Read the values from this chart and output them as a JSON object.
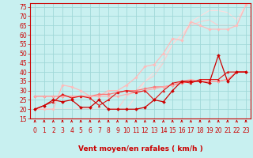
{
  "xlabel": "Vent moyen/en rafales ( km/h )",
  "xlim": [
    -0.5,
    23.5
  ],
  "ylim": [
    15,
    77
  ],
  "yticks": [
    15,
    20,
    25,
    30,
    35,
    40,
    45,
    50,
    55,
    60,
    65,
    70,
    75
  ],
  "xticks": [
    0,
    1,
    2,
    3,
    4,
    5,
    6,
    7,
    8,
    9,
    10,
    11,
    12,
    13,
    14,
    15,
    16,
    17,
    18,
    19,
    20,
    21,
    22,
    23
  ],
  "bg_color": "#c8f0f0",
  "grid_color": "#a0d8d8",
  "lines": [
    {
      "x": [
        0,
        1,
        2,
        3,
        4,
        5,
        6,
        7,
        8,
        9,
        10,
        11,
        12,
        13,
        14,
        15,
        16,
        17,
        18,
        19,
        20,
        21,
        22,
        23
      ],
      "y": [
        20,
        22,
        25,
        24,
        25,
        21,
        21,
        25,
        20,
        20,
        20,
        20,
        21,
        25,
        24,
        30,
        35,
        35,
        35,
        34,
        49,
        35,
        40,
        40
      ],
      "color": "#cc0000",
      "lw": 0.9,
      "marker": "D",
      "ms": 2.0,
      "zorder": 5
    },
    {
      "x": [
        0,
        1,
        2,
        3,
        4,
        5,
        6,
        7,
        8,
        9,
        10,
        11,
        12,
        13,
        14,
        15,
        16,
        17,
        18,
        19,
        20,
        21,
        22,
        23
      ],
      "y": [
        20,
        22,
        24,
        28,
        26,
        27,
        26,
        22,
        25,
        29,
        30,
        29,
        30,
        25,
        30,
        34,
        35,
        34,
        36,
        36,
        36,
        40,
        40,
        40
      ],
      "color": "#dd1111",
      "lw": 0.8,
      "marker": "^",
      "ms": 2.0,
      "zorder": 4
    },
    {
      "x": [
        0,
        1,
        2,
        3,
        4,
        5,
        6,
        7,
        8,
        9,
        10,
        11,
        12,
        13,
        14,
        15,
        16,
        17,
        18,
        19,
        20,
        21,
        22,
        23
      ],
      "y": [
        27,
        27,
        27,
        27,
        27,
        27,
        27,
        28,
        28,
        29,
        30,
        30,
        31,
        32,
        32,
        33,
        34,
        35,
        35,
        35,
        35,
        36,
        40,
        40
      ],
      "color": "#ff7777",
      "lw": 0.9,
      "marker": "D",
      "ms": 1.8,
      "zorder": 3
    },
    {
      "x": [
        0,
        1,
        2,
        3,
        4,
        5,
        6,
        7,
        8,
        9,
        10,
        11,
        12,
        13,
        14,
        15,
        16,
        17,
        18,
        19,
        20,
        21,
        22,
        23
      ],
      "y": [
        27,
        27,
        27,
        27,
        27,
        27,
        27,
        27,
        27,
        27,
        28,
        29,
        30,
        31,
        32,
        33,
        35,
        36,
        35,
        35,
        35,
        36,
        40,
        40
      ],
      "color": "#ffaaaa",
      "lw": 0.8,
      "marker": "D",
      "ms": 1.5,
      "zorder": 3
    },
    {
      "x": [
        0,
        1,
        2,
        3,
        4,
        5,
        6,
        7,
        8,
        9,
        10,
        11,
        12,
        13,
        14,
        15,
        16,
        17,
        18,
        19,
        20,
        21,
        22,
        23
      ],
      "y": [
        20,
        20,
        20,
        33,
        32,
        30,
        27,
        27,
        30,
        30,
        33,
        37,
        43,
        44,
        50,
        58,
        57,
        67,
        65,
        63,
        63,
        63,
        65,
        76
      ],
      "color": "#ffbbbb",
      "lw": 0.9,
      "marker": "D",
      "ms": 1.8,
      "zorder": 2
    },
    {
      "x": [
        0,
        1,
        2,
        3,
        4,
        5,
        6,
        7,
        8,
        9,
        10,
        11,
        12,
        13,
        14,
        15,
        16,
        17,
        18,
        19,
        20,
        21,
        22,
        23
      ],
      "y": [
        20,
        20,
        20,
        20,
        20,
        20,
        20,
        20,
        20,
        20,
        27,
        30,
        35,
        38,
        45,
        55,
        60,
        65,
        67,
        68,
        65,
        65,
        65,
        76
      ],
      "color": "#ffcccc",
      "lw": 0.8,
      "marker": null,
      "ms": 0,
      "zorder": 1
    },
    {
      "x": [
        0,
        1,
        2,
        3,
        4,
        5,
        6,
        7,
        8,
        9,
        10,
        11,
        12,
        13,
        14,
        15,
        16,
        17,
        18,
        19,
        20,
        21,
        22,
        23
      ],
      "y": [
        20,
        20,
        20,
        20,
        20,
        20,
        20,
        20,
        20,
        20,
        20,
        27,
        35,
        40,
        47,
        55,
        60,
        67,
        70,
        73,
        73,
        72,
        68,
        76
      ],
      "color": "#ffdddd",
      "lw": 0.8,
      "marker": null,
      "ms": 0,
      "zorder": 1
    }
  ],
  "arrow_color": "#cc0000",
  "tick_color": "#cc0000",
  "label_fontsize": 5.5,
  "xlabel_fontsize": 6.5
}
